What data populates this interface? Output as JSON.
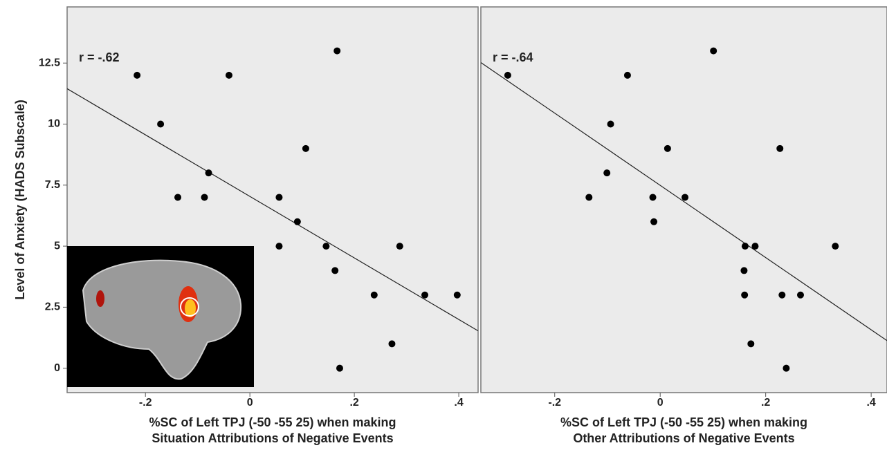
{
  "chart_data": [
    {
      "type": "scatter",
      "ylabel": "Level of Anxiety (HADS Subscale)",
      "xlabel": [
        "%SC of Left TPJ (-50 -55 25) when making",
        "Situation Attributions of Negative Events"
      ],
      "annotation": "r = -.62",
      "color": "#000000",
      "x": [
        -0.216,
        -0.171,
        -0.04,
        0.167,
        -0.079,
        -0.138,
        -0.087,
        0.107,
        0.056,
        0.091,
        0.056,
        0.146,
        0.287,
        0.163,
        0.238,
        0.335,
        0.397,
        0.272,
        0.172
      ],
      "values": [
        12,
        10,
        12,
        13,
        8,
        7,
        7,
        9,
        7,
        6,
        5,
        5,
        5,
        4,
        3,
        3,
        3,
        1,
        0
      ],
      "trendline": {
        "x": [
          -0.35,
          0.437
        ],
        "y": [
          11.45,
          1.53
        ]
      },
      "xlim": [
        -0.35,
        0.437
      ],
      "ylim": [
        -1,
        14.8
      ],
      "xticks": [
        {
          "value": -0.2,
          "label": "-.2"
        },
        0,
        {
          "value": 0.2,
          "label": ".2"
        },
        {
          "value": 0.4,
          "label": ".4"
        }
      ],
      "yticks": [
        0,
        2.5,
        5,
        7.5,
        10,
        12.5
      ]
    },
    {
      "type": "scatter",
      "xlabel": [
        "%SC of Left TPJ (-50 -55 25) when making",
        "Other Attributions of Negative Events"
      ],
      "annotation": "r = -.64",
      "color": "#000000",
      "x": [
        -0.289,
        -0.062,
        0.101,
        -0.094,
        0.014,
        0.227,
        -0.101,
        -0.135,
        -0.014,
        0.047,
        -0.012,
        0.161,
        0.18,
        0.332,
        0.159,
        0.16,
        0.231,
        0.266,
        0.172,
        0.239
      ],
      "values": [
        12,
        12,
        13,
        10,
        9,
        9,
        8,
        7,
        7,
        7,
        6,
        5,
        5,
        5,
        4,
        3,
        3,
        3,
        1,
        0
      ],
      "trendline": {
        "x": [
          -0.34,
          0.43
        ],
        "y": [
          12.52,
          1.13
        ]
      },
      "xlim": [
        -0.34,
        0.43
      ],
      "ylim": [
        -1,
        14.8
      ],
      "xticks": [
        {
          "value": -0.2,
          "label": "-.2"
        },
        0,
        {
          "value": 0.2,
          "label": ".2"
        },
        {
          "value": 0.4,
          "label": ".4"
        }
      ]
    }
  ]
}
